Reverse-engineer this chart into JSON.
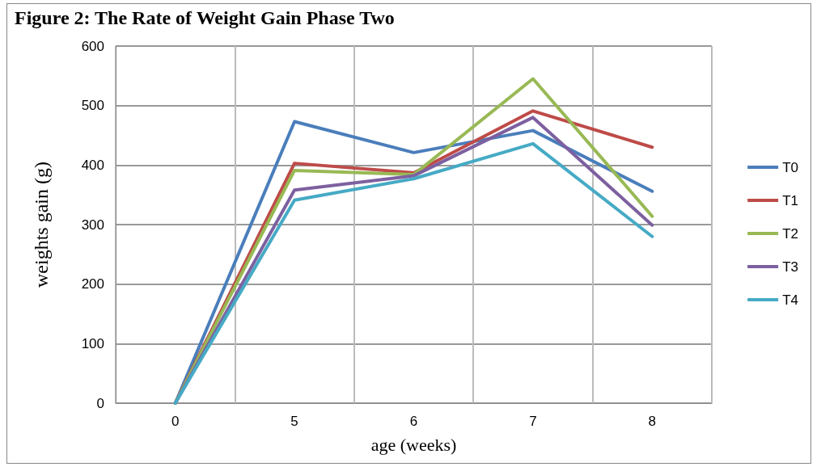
{
  "chart_data": {
    "type": "line",
    "title": "Figure 2: The Rate of Weight Gain Phase Two",
    "xlabel": "age (weeks)",
    "ylabel": "weights gain (g)",
    "categories": [
      "0",
      "5",
      "6",
      "7",
      "8"
    ],
    "series": [
      {
        "name": "T0",
        "color": "#4a7ebb",
        "values": [
          0,
          473,
          421,
          458,
          356
        ]
      },
      {
        "name": "T1",
        "color": "#be4b48",
        "values": [
          0,
          403,
          387,
          491,
          430
        ]
      },
      {
        "name": "T2",
        "color": "#98b954",
        "values": [
          0,
          391,
          384,
          545,
          314
        ]
      },
      {
        "name": "T3",
        "color": "#7d60a0",
        "values": [
          0,
          358,
          382,
          480,
          299
        ]
      },
      {
        "name": "T4",
        "color": "#46aac5",
        "values": [
          0,
          341,
          377,
          436,
          280
        ]
      }
    ],
    "ylim": [
      0,
      600
    ],
    "yticks": [
      0,
      100,
      200,
      300,
      400,
      500,
      600
    ],
    "grid": true,
    "legend": "right",
    "marker": "none",
    "line_style": "solid"
  }
}
